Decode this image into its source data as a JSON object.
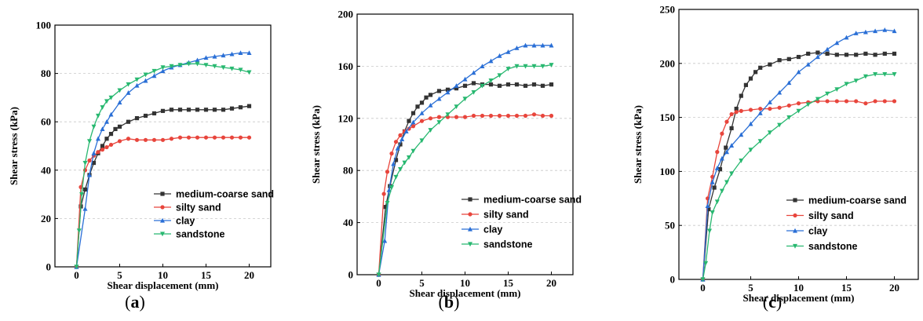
{
  "chart_data": [
    {
      "panel_label": "a",
      "type": "line",
      "xlabel": "Shear displacement (mm)",
      "ylabel": "Shear stress (kPa)",
      "xlim": [
        -2.5,
        22.5
      ],
      "ylim": [
        0,
        100
      ],
      "xticks": [
        0,
        5,
        10,
        15,
        20
      ],
      "yticks": [
        0,
        20,
        40,
        60,
        80,
        100
      ],
      "grid": "horizontal-dashed",
      "legend": "bottom-right",
      "series": [
        {
          "name": "medium-coarse sand",
          "color": "#333333",
          "marker": "square",
          "x": [
            0,
            0.5,
            1,
            1.5,
            2,
            2.5,
            3,
            3.5,
            4,
            4.5,
            5,
            6,
            7,
            8,
            9,
            10,
            11,
            12,
            13,
            14,
            15,
            16,
            17,
            18,
            19,
            20
          ],
          "y": [
            0,
            25,
            32,
            38,
            43,
            47,
            50,
            53,
            55,
            57,
            58,
            60,
            61.5,
            62.5,
            63.5,
            64.5,
            65,
            65,
            65,
            65,
            65,
            65,
            65,
            65.5,
            66,
            66.5
          ]
        },
        {
          "name": "silty sand",
          "color": "#e8453c",
          "marker": "circle",
          "x": [
            0,
            0.5,
            1,
            1.5,
            2,
            2.5,
            3,
            3.5,
            4,
            5,
            6,
            7,
            8,
            9,
            10,
            11,
            12,
            13,
            14,
            15,
            16,
            17,
            18,
            19,
            20
          ],
          "y": [
            0,
            33,
            40,
            44,
            46,
            47.5,
            48.5,
            49.5,
            50.5,
            52,
            53,
            52.5,
            52.5,
            52.5,
            52.5,
            53,
            53.5,
            53.5,
            53.5,
            53.5,
            53.5,
            53.5,
            53.5,
            53.5,
            53.5
          ]
        },
        {
          "name": "clay",
          "color": "#2a6fd6",
          "marker": "triangle",
          "x": [
            0,
            1,
            1.5,
            2,
            2.5,
            3,
            3.5,
            4,
            5,
            6,
            7,
            8,
            9,
            10,
            11,
            12,
            13,
            14,
            15,
            16,
            17,
            18,
            19,
            20
          ],
          "y": [
            0,
            24,
            38,
            47,
            53,
            57,
            60,
            63,
            68,
            72,
            75,
            77,
            79,
            81,
            82.5,
            83.5,
            84.5,
            85.5,
            86.5,
            87,
            87.5,
            88,
            88.5,
            88.5
          ]
        },
        {
          "name": "sandstone",
          "color": "#28b870",
          "marker": "triangle-down",
          "x": [
            0,
            0.3,
            0.6,
            1,
            1.5,
            2,
            2.5,
            3,
            3.5,
            4,
            5,
            6,
            7,
            8,
            9,
            10,
            11,
            12,
            13,
            14,
            15,
            16,
            17,
            18,
            19,
            20
          ],
          "y": [
            0,
            15,
            30,
            43,
            52,
            58,
            62.5,
            66,
            68.5,
            70,
            73,
            75.5,
            77.5,
            79.5,
            81,
            82.5,
            83,
            83.5,
            84,
            84,
            83.5,
            83,
            82.5,
            82,
            81.5,
            80.5
          ]
        }
      ]
    },
    {
      "panel_label": "b",
      "type": "line",
      "xlabel": "Shear displacement (mm)",
      "ylabel": "Shear stress (kPa)",
      "xlim": [
        -2.5,
        22.5
      ],
      "ylim": [
        0,
        200
      ],
      "xticks": [
        0,
        5,
        10,
        15,
        20
      ],
      "yticks": [
        0,
        40,
        80,
        120,
        160,
        200
      ],
      "grid": "horizontal-dashed",
      "legend": "bottom-right",
      "series": [
        {
          "name": "medium-coarse sand",
          "color": "#333333",
          "marker": "square",
          "x": [
            0,
            0.8,
            1.3,
            2,
            2.5,
            3,
            3.5,
            4,
            4.5,
            5,
            5.5,
            6,
            7,
            8,
            9,
            10,
            11,
            12,
            13,
            14,
            15,
            16,
            17,
            18,
            19,
            20
          ],
          "y": [
            0,
            52,
            68,
            88,
            100,
            110,
            118,
            124,
            129,
            132,
            136,
            138,
            141,
            142,
            143,
            145,
            147,
            146,
            146,
            145,
            146,
            146,
            145,
            146,
            145,
            146
          ]
        },
        {
          "name": "silty sand",
          "color": "#e8453c",
          "marker": "circle",
          "x": [
            0,
            0.6,
            1,
            1.5,
            2,
            2.5,
            3,
            3.5,
            4,
            5,
            6,
            7,
            8,
            9,
            10,
            11,
            12,
            13,
            14,
            15,
            16,
            17,
            18,
            19,
            20
          ],
          "y": [
            0,
            62,
            79,
            93,
            102,
            107,
            110,
            112,
            114,
            118,
            120,
            121,
            121,
            121,
            121,
            122,
            122,
            122,
            122,
            122,
            122,
            122,
            123,
            122,
            122
          ]
        },
        {
          "name": "clay",
          "color": "#2a6fd6",
          "marker": "triangle",
          "x": [
            0,
            0.7,
            1.2,
            1.7,
            2.2,
            2.7,
            3.2,
            4,
            5,
            6,
            7,
            8,
            9,
            10,
            11,
            12,
            13,
            14,
            15,
            16,
            17,
            18,
            19,
            20
          ],
          "y": [
            0,
            26,
            65,
            85,
            97,
            104,
            110,
            117,
            124,
            130,
            135,
            140,
            145,
            150,
            155,
            160,
            164,
            168,
            171,
            174,
            176,
            176,
            176,
            176
          ]
        },
        {
          "name": "sandstone",
          "color": "#28b870",
          "marker": "triangle-down",
          "x": [
            0,
            1,
            1.5,
            2,
            2.5,
            3,
            3.5,
            4,
            5,
            6,
            7,
            8,
            9,
            10,
            11,
            12,
            13,
            14,
            15,
            16,
            17,
            18,
            19,
            20
          ],
          "y": [
            0,
            55,
            67,
            75,
            81,
            86,
            90,
            95,
            103,
            111,
            117,
            123,
            129,
            135,
            140,
            145,
            149,
            153,
            158,
            160,
            160,
            160,
            160,
            161
          ]
        }
      ]
    },
    {
      "panel_label": "c",
      "type": "line",
      "xlabel": "Shear displacement (mm)",
      "ylabel": "Shear stress (kPa)",
      "xlim": [
        -2.5,
        22.5
      ],
      "ylim": [
        0,
        250
      ],
      "xticks": [
        0,
        5,
        10,
        15,
        20
      ],
      "yticks": [
        0,
        50,
        100,
        150,
        200,
        250
      ],
      "grid": "horizontal-dashed",
      "legend": "bottom-right",
      "series": [
        {
          "name": "medium-coarse sand",
          "color": "#333333",
          "marker": "square",
          "x": [
            0,
            0.6,
            1.2,
            1.8,
            2.4,
            3,
            3.5,
            4,
            4.5,
            5,
            5.5,
            6,
            7,
            8,
            9,
            10,
            11,
            12,
            13,
            14,
            15,
            16,
            17,
            18,
            19,
            20
          ],
          "y": [
            0,
            65,
            85,
            102,
            122,
            140,
            158,
            170,
            180,
            186,
            192,
            196,
            199,
            203,
            204,
            206,
            209,
            210,
            209,
            208,
            208,
            208,
            209,
            208,
            209,
            209
          ]
        },
        {
          "name": "silty sand",
          "color": "#e8453c",
          "marker": "circle",
          "x": [
            0,
            0.5,
            1,
            1.5,
            2,
            2.5,
            3,
            3.5,
            4,
            5,
            6,
            7,
            8,
            9,
            10,
            11,
            12,
            13,
            14,
            15,
            16,
            17,
            18,
            19,
            20
          ],
          "y": [
            0,
            75,
            95,
            118,
            135,
            146,
            153,
            155,
            156,
            157,
            158,
            158,
            159,
            161,
            163,
            164,
            165,
            165,
            165,
            165,
            165,
            163,
            165,
            165,
            165
          ]
        },
        {
          "name": "clay",
          "color": "#2a6fd6",
          "marker": "triangle",
          "x": [
            0,
            0.5,
            1,
            1.5,
            2,
            2.5,
            3,
            4,
            5,
            6,
            7,
            8,
            9,
            10,
            11,
            12,
            13,
            14,
            15,
            16,
            17,
            18,
            19,
            20
          ],
          "y": [
            0,
            68,
            90,
            103,
            112,
            118,
            124,
            134,
            144,
            154,
            164,
            173,
            182,
            192,
            199,
            206,
            213,
            219,
            224,
            228,
            229,
            230,
            231,
            230
          ]
        },
        {
          "name": "sandstone",
          "color": "#28b870",
          "marker": "triangle-down",
          "x": [
            0,
            0.3,
            0.7,
            1,
            1.5,
            2,
            2.5,
            3,
            4,
            5,
            6,
            7,
            8,
            9,
            10,
            11,
            12,
            13,
            14,
            15,
            16,
            17,
            18,
            19,
            20
          ],
          "y": [
            0,
            15,
            45,
            62,
            72,
            82,
            90,
            98,
            110,
            120,
            128,
            136,
            143,
            150,
            156,
            162,
            167,
            172,
            176,
            181,
            184,
            188,
            190,
            190,
            190
          ]
        }
      ]
    }
  ]
}
